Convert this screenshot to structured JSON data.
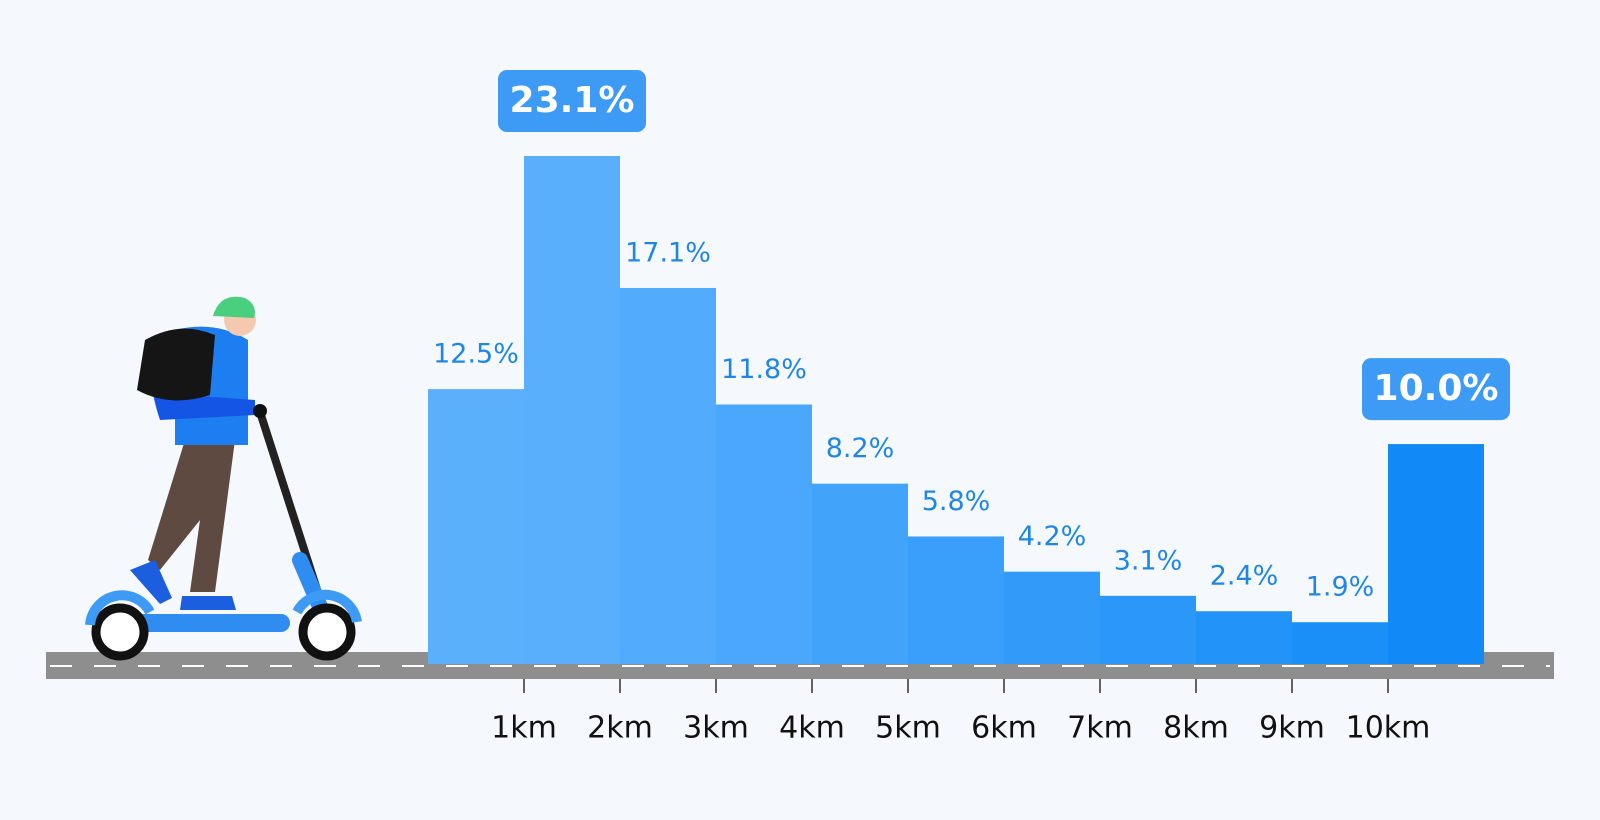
{
  "chart_data": {
    "type": "histogram",
    "bins": [
      0,
      1,
      2,
      3,
      4,
      5,
      6,
      7,
      8,
      9,
      10,
      11
    ],
    "values": [
      12.5,
      23.1,
      17.1,
      11.8,
      8.2,
      5.8,
      4.2,
      3.1,
      2.4,
      1.9,
      10.0
    ],
    "value_labels": [
      "12.5%",
      "23.1%",
      "17.1%",
      "11.8%",
      "8.2%",
      "5.8%",
      "4.2%",
      "3.1%",
      "2.4%",
      "1.9%",
      "10.0%"
    ],
    "colors": [
      "#5bb0fc",
      "#5aaffc",
      "#52abfc",
      "#4aa7fb",
      "#42a3fb",
      "#3a9ffa",
      "#329bfa",
      "#2a97f9",
      "#2293f9",
      "#1a8ff8",
      "#118af8"
    ],
    "highlight": [
      1,
      10
    ],
    "highlight_color": "#3d9bf5",
    "label_color": "#1f86e6",
    "xlim": [
      0,
      11
    ],
    "xticks": [
      {
        "value": 1,
        "label": "1km"
      },
      {
        "value": 2,
        "label": "2km"
      },
      {
        "value": 3,
        "label": "3km"
      },
      {
        "value": 4,
        "label": "4km"
      },
      {
        "value": 5,
        "label": "5km"
      },
      {
        "value": 6,
        "label": "6km"
      },
      {
        "value": 7,
        "label": "7km"
      },
      {
        "value": 8,
        "label": "8km"
      },
      {
        "value": 9,
        "label": "9km"
      },
      {
        "value": 10,
        "label": "10km"
      }
    ]
  }
}
